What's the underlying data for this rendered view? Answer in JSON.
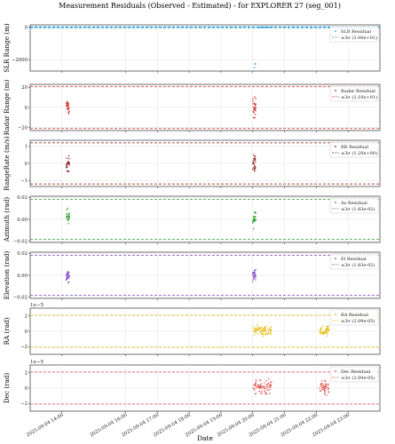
{
  "chart_data": {
    "type": "scatter",
    "title": "Measurement Residuals (Observed - Estimated) - for EXPLORER 27 (seg_001)",
    "xlabel": "Date",
    "x_range": [
      "2025-09-04 13:00",
      "2025-09-05 00:00"
    ],
    "x_ticks": [
      "2025-09-04 14:00",
      "2025-09-04 16:00",
      "2025-09-04 17:00",
      "2025-09-04 18:00",
      "2025-09-04 19:00",
      "2025-09-04 20:00",
      "2025-09-04 21:00",
      "2025-09-04 22:00",
      "2025-09-04 23:00"
    ],
    "grid": true,
    "legend_placement": "upper right",
    "panels": [
      {
        "id": "slr",
        "ylabel": "SLR Range (m)",
        "ylim": [
          -2700,
          150
        ],
        "yticks": [
          {
            "v": 0,
            "t": "0"
          },
          {
            "v": -2000,
            "t": "−2000"
          }
        ],
        "color": "#1f9bd6",
        "sigma": 30.0,
        "legend": [
          "SLR Residual",
          "±3σ (3.00e+01)"
        ],
        "clusters": [
          {
            "t0": "2025-09-04 20:06",
            "t1": "2025-09-04 20:36",
            "center": 0,
            "spread": 3,
            "n": 40
          },
          {
            "t0": "2025-09-04 20:03",
            "t1": "2025-09-04 20:06",
            "center": -2300,
            "spread": 250,
            "n": 3
          }
        ]
      },
      {
        "id": "radar",
        "ylabel": "Radar Range (m)",
        "ylim": [
          -23,
          23
        ],
        "yticks": [
          {
            "v": 20,
            "t": "20"
          },
          {
            "v": 0,
            "t": "0"
          },
          {
            "v": -20,
            "t": "−20"
          }
        ],
        "color": "#d62728",
        "sigma": 21.0,
        "legend": [
          "Radar Residual",
          "±3σ (2.10e+01)"
        ],
        "clusters": [
          {
            "t0": "2025-09-04 14:08",
            "t1": "2025-09-04 14:14",
            "center": 0,
            "spread": 9,
            "n": 24
          },
          {
            "t0": "2025-09-04 20:00",
            "t1": "2025-09-04 20:06",
            "center": 0,
            "spread": 15,
            "n": 24
          }
        ]
      },
      {
        "id": "rr",
        "ylabel": "RangeRate (m/s)",
        "ylim": [
          -1.35,
          1.35
        ],
        "yticks": [
          {
            "v": 1,
            "t": "1"
          },
          {
            "v": 0,
            "t": "0"
          },
          {
            "v": -1,
            "t": "−1"
          }
        ],
        "color": "#8b1a1a",
        "sigma": 1.2,
        "legend": [
          "RR Residual",
          "±3σ (1.20e+00)"
        ],
        "clusters": [
          {
            "t0": "2025-09-04 14:08",
            "t1": "2025-09-04 14:14",
            "center": 0,
            "spread": 0.7,
            "n": 24
          },
          {
            "t0": "2025-09-04 20:00",
            "t1": "2025-09-04 20:06",
            "center": 0,
            "spread": 0.8,
            "n": 24
          }
        ]
      },
      {
        "id": "az",
        "ylabel": "Azimuth (rad)",
        "ylim": [
          -0.021,
          0.021
        ],
        "yticks": [
          {
            "v": 0.02,
            "t": "0.02"
          },
          {
            "v": 0,
            "t": "0.00"
          },
          {
            "v": -0.02,
            "t": "−0.02"
          }
        ],
        "color": "#2ca02c",
        "sigma": 0.0183,
        "legend": [
          "Az Residual",
          "±3σ (1.83e-02)"
        ],
        "clusters": [
          {
            "t0": "2025-09-04 14:08",
            "t1": "2025-09-04 14:14",
            "center": 0.002,
            "spread": 0.01,
            "n": 24
          },
          {
            "t0": "2025-09-04 20:00",
            "t1": "2025-09-04 20:06",
            "center": 0.001,
            "spread": 0.012,
            "n": 24
          }
        ]
      },
      {
        "id": "el",
        "ylabel": "Elevation (rad)",
        "ylim": [
          -0.021,
          0.021
        ],
        "yticks": [
          {
            "v": 0.02,
            "t": "0.02"
          },
          {
            "v": 0,
            "t": "0.00"
          },
          {
            "v": -0.02,
            "t": "−0.02"
          }
        ],
        "color": "#7b3fc4",
        "sigma": 0.0183,
        "legend": [
          "El Residual",
          "±3σ (1.83e-02)"
        ],
        "clusters": [
          {
            "t0": "2025-09-04 14:08",
            "t1": "2025-09-04 14:14",
            "center": 0,
            "spread": 0.008,
            "n": 24
          },
          {
            "t0": "2025-09-04 20:00",
            "t1": "2025-09-04 20:06",
            "center": 0,
            "spread": 0.008,
            "n": 24
          }
        ]
      },
      {
        "id": "ra",
        "ylabel": "RA (rad)",
        "multiplier": "1e−5",
        "ylim": [
          -3.0,
          3.0
        ],
        "yticks": [
          {
            "v": 2,
            "t": "2"
          },
          {
            "v": 0,
            "t": "0"
          },
          {
            "v": -2,
            "t": "−2"
          }
        ],
        "color": "#e6b800",
        "sigma": 2.09,
        "legend": [
          "RA Residual",
          "±3σ (2.09e-05)"
        ],
        "clusters": [
          {
            "t0": "2025-09-04 20:00",
            "t1": "2025-09-04 20:36",
            "center": 0.1,
            "spread": 0.9,
            "n": 70
          },
          {
            "t0": "2025-09-04 22:06",
            "t1": "2025-09-04 22:24",
            "center": 0.1,
            "spread": 0.9,
            "n": 45
          }
        ]
      },
      {
        "id": "dec",
        "ylabel": "Dec (rad)",
        "multiplier": "1e−5",
        "ylim": [
          -3.0,
          3.0
        ],
        "yticks": [
          {
            "v": 2,
            "t": "2"
          },
          {
            "v": 0,
            "t": "0"
          },
          {
            "v": -2,
            "t": "−2"
          }
        ],
        "color": "#e05252",
        "sigma": 2.09,
        "legend": [
          "Dec Residual",
          "±3σ (2.09e-05)"
        ],
        "clusters": [
          {
            "t0": "2025-09-04 20:00",
            "t1": "2025-09-04 20:36",
            "center": 0.2,
            "spread": 1.3,
            "n": 70
          },
          {
            "t0": "2025-09-04 22:06",
            "t1": "2025-09-04 22:24",
            "center": 0.0,
            "spread": 1.3,
            "n": 45
          }
        ]
      }
    ]
  }
}
